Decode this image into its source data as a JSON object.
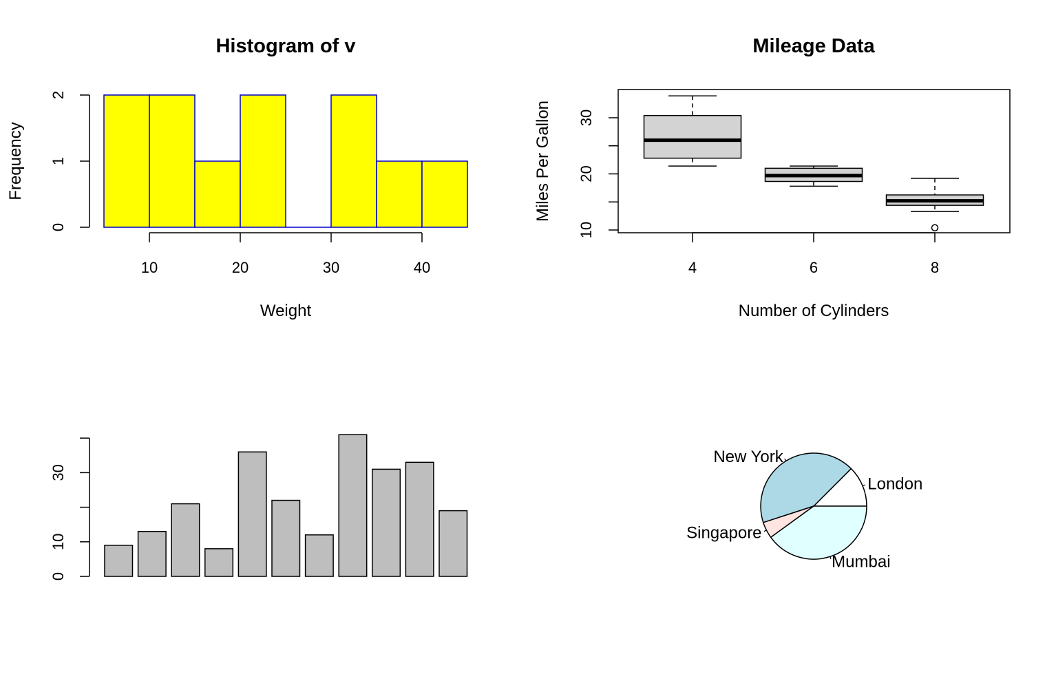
{
  "colors": {
    "background": "#ffffff",
    "axis": "#000000",
    "hist_fill": "#ffff00",
    "hist_border": "#0000cd",
    "box_fill": "#d3d3d3",
    "bar_fill": "#bebebe",
    "pie_new_york": "#add8e6",
    "pie_london": "#ffffff",
    "pie_mumbai": "#e0ffff",
    "pie_singapore": "#ffe4e1"
  },
  "chart_data": [
    {
      "type": "bar",
      "subtype": "histogram",
      "title": "Histogram of v",
      "xlabel": "Weight",
      "ylabel": "Frequency",
      "bins": [
        [
          5,
          10
        ],
        [
          10,
          15
        ],
        [
          15,
          20
        ],
        [
          20,
          25
        ],
        [
          25,
          30
        ],
        [
          30,
          35
        ],
        [
          35,
          40
        ],
        [
          40,
          45
        ]
      ],
      "values": [
        2,
        2,
        1,
        2,
        0,
        2,
        1,
        1
      ],
      "xticks": [
        10,
        20,
        30,
        40
      ],
      "yticks": [
        0,
        1,
        2
      ],
      "xlim": [
        5,
        45
      ],
      "ylim": [
        0,
        2
      ]
    },
    {
      "type": "boxplot",
      "title": "Mileage Data",
      "xlabel": "Number of Cylinders",
      "ylabel": "Miles Per Gallon",
      "categories": [
        "4",
        "6",
        "8"
      ],
      "boxes": [
        {
          "category": "4",
          "whisker_low": 21.4,
          "q1": 22.8,
          "median": 26.0,
          "q3": 30.4,
          "whisker_high": 33.9,
          "outliers": []
        },
        {
          "category": "6",
          "whisker_low": 17.8,
          "q1": 18.65,
          "median": 19.7,
          "q3": 21.0,
          "whisker_high": 21.4,
          "outliers": []
        },
        {
          "category": "8",
          "whisker_low": 13.3,
          "q1": 14.4,
          "median": 15.2,
          "q3": 16.25,
          "whisker_high": 19.2,
          "outliers": [
            10.4
          ]
        }
      ],
      "yticks": [
        10,
        20,
        30
      ],
      "yticks_minor": [
        15,
        25
      ],
      "ylim": [
        10,
        35
      ]
    },
    {
      "type": "bar",
      "values": [
        9,
        13,
        21,
        8,
        36,
        22,
        12,
        41,
        31,
        33,
        19
      ],
      "yticks": [
        0,
        10,
        30
      ],
      "yticks_minor": [
        20,
        40
      ],
      "ylim": [
        0,
        40
      ]
    },
    {
      "type": "pie",
      "labels": [
        "London",
        "New York",
        "Singapore",
        "Mumbai"
      ],
      "values": [
        12.5,
        42.5,
        5,
        40
      ],
      "colors": [
        "#ffffff",
        "#add8e6",
        "#ffe4e1",
        "#e0ffff"
      ]
    }
  ]
}
